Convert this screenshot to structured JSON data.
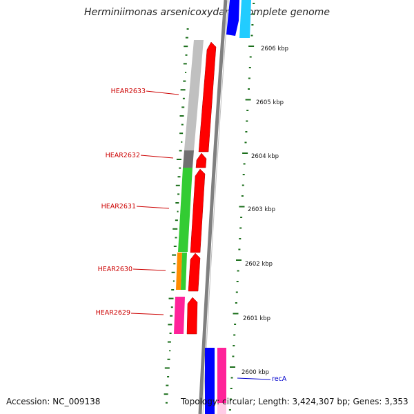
{
  "title": "Herminiimonas arsenicoxydans, complete genome",
  "accession_text": "Accession: NC_009138",
  "topology_text": "Topology: circular; Length: 3,424,307 bp; Genes: 3,353",
  "scale_labels": [
    "2606 kbp",
    "2605 kbp",
    "2604 kbp",
    "2603 kbp",
    "2602 kbp",
    "2601 kbp",
    "2600 kbp"
  ],
  "gene_labels": [
    {
      "text": "HEAR2633",
      "color": "#cc0000"
    },
    {
      "text": "HEAR2632",
      "color": "#cc0000"
    },
    {
      "text": "HEAR2631",
      "color": "#cc0000"
    },
    {
      "text": "HEAR2630",
      "color": "#cc0000"
    },
    {
      "text": "HEAR2629",
      "color": "#cc0000"
    },
    {
      "text": "recA",
      "color": "#0000cc"
    }
  ],
  "colors": {
    "cds_arrow": "#ff0000",
    "backbone": "#808080",
    "gc_ticks": "#1a6e1a",
    "cog_grey": "#c0c0c0",
    "cog_dark_grey": "#707070",
    "cog_green": "#33cc33",
    "cog_orange": "#ff8c00",
    "cog_pink": "#ff2299",
    "cog_blue": "#0000ff",
    "cog_cyan": "#22ccff"
  }
}
